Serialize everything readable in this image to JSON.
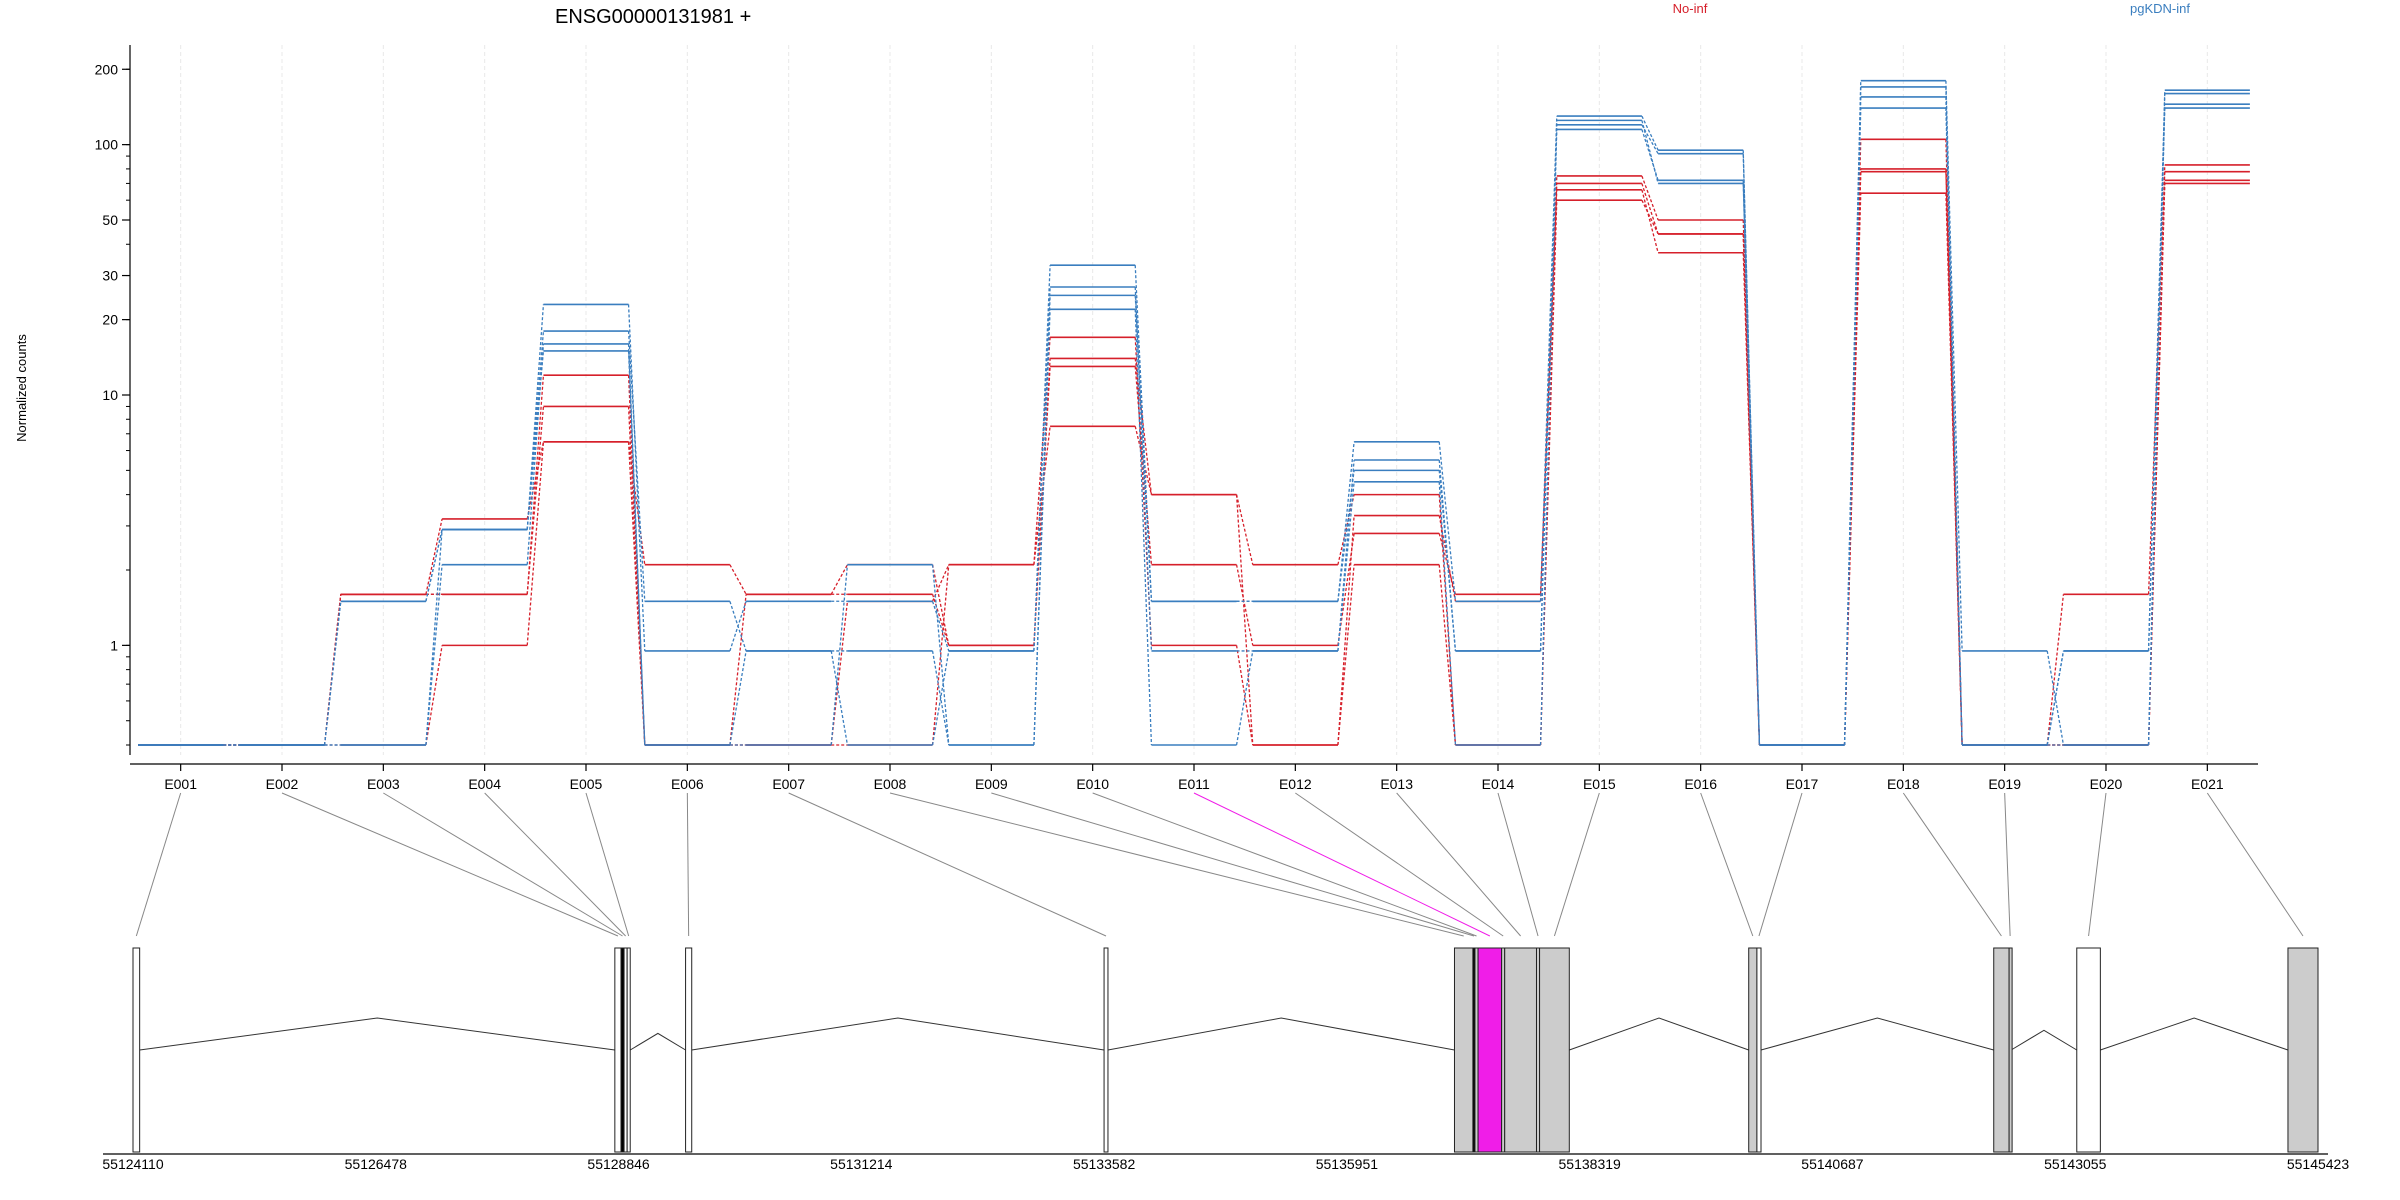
{
  "chart_data": {
    "type": "line",
    "title": "ENSG00000131981 +",
    "ylabel": "Normalized counts",
    "y_scale": "log",
    "yticks": [
      1,
      10,
      20,
      30,
      50,
      100,
      200
    ],
    "ylim": [
      0.4,
      250
    ],
    "grid": "x-major",
    "legend_position": "top-right",
    "colors": {
      "No-inf": "#d6202b",
      "pgKDN-inf": "#3a7ebf",
      "highlight": "#f01de8",
      "exon_fill": "#cccccc"
    },
    "categories": [
      "E001",
      "E002",
      "E003",
      "E004",
      "E005",
      "E006",
      "E007",
      "E008",
      "E009",
      "E010",
      "E011",
      "E012",
      "E013",
      "E014",
      "E015",
      "E016",
      "E017",
      "E018",
      "E019",
      "E020",
      "E021"
    ],
    "series": [
      {
        "name": "No-inf",
        "values": [
          0.4,
          0.4,
          1.6,
          3.2,
          6.5,
          2.1,
          1.6,
          1.6,
          1.0,
          14,
          4.0,
          2.1,
          4.0,
          0.4,
          75,
          50,
          0.4,
          105,
          0.4,
          0.4,
          83
        ]
      },
      {
        "name": "No-inf",
        "values": [
          0.4,
          0.4,
          1.6,
          1.6,
          9,
          0.4,
          1.6,
          2.1,
          1.0,
          13,
          2.1,
          1.0,
          2.8,
          1.6,
          70,
          44,
          0.4,
          80,
          0.4,
          1.6,
          78
        ]
      },
      {
        "name": "No-inf",
        "values": [
          0.4,
          0.4,
          1.6,
          1.6,
          12,
          0.4,
          0.4,
          1.5,
          2.1,
          17,
          1.0,
          0.4,
          3.3,
          1.5,
          66,
          37,
          0.4,
          78,
          0.4,
          0.4,
          72
        ]
      },
      {
        "name": "No-inf",
        "values": [
          0.4,
          0.4,
          0.4,
          1.0,
          6.5,
          0.4,
          0.4,
          0.4,
          2.1,
          7.5,
          4.0,
          0.4,
          2.1,
          0.4,
          60,
          44,
          0.4,
          64,
          0.4,
          0.4,
          70
        ]
      },
      {
        "name": "pgKDN-inf",
        "values": [
          0.4,
          0.4,
          1.5,
          2.9,
          23,
          0.95,
          1.5,
          1.5,
          0.95,
          33,
          1.5,
          1.5,
          6.5,
          1.5,
          130,
          95,
          0.4,
          180,
          0.95,
          0.4,
          165
        ]
      },
      {
        "name": "pgKDN-inf",
        "values": [
          0.4,
          0.4,
          1.5,
          2.9,
          18,
          1.5,
          0.95,
          0.4,
          0.95,
          27,
          0.95,
          0.95,
          5.5,
          0.95,
          120,
          92,
          0.4,
          170,
          0.4,
          0.95,
          160
        ]
      },
      {
        "name": "pgKDN-inf",
        "values": [
          0.4,
          0.4,
          0.4,
          2.1,
          16,
          0.4,
          0.95,
          0.95,
          0.4,
          22,
          0.4,
          0.95,
          4.5,
          0.4,
          115,
          72,
          0.4,
          155,
          0.4,
          0.4,
          145
        ]
      },
      {
        "name": "pgKDN-inf",
        "values": [
          0.4,
          0.4,
          0.4,
          2.9,
          15,
          0.4,
          0.4,
          2.1,
          0.4,
          25,
          1.5,
          1.5,
          5.0,
          0.95,
          125,
          70,
          0.4,
          140,
          0.4,
          0.95,
          140
        ]
      }
    ],
    "gene_model": {
      "exons": [
        {
          "id": "E001",
          "start": 55124110,
          "end": 55124175,
          "fill": "#ffffff"
        },
        {
          "id": "E002",
          "start": 55128810,
          "end": 55128870,
          "fill": "#ffffff"
        },
        {
          "id": "E003",
          "start": 55128870,
          "end": 55128900,
          "fill": "#000000"
        },
        {
          "id": "E004",
          "start": 55128900,
          "end": 55128930,
          "fill": "#ffffff"
        },
        {
          "id": "E005",
          "start": 55128930,
          "end": 55128960,
          "fill": "#ffffff"
        },
        {
          "id": "E006",
          "start": 55129500,
          "end": 55129560,
          "fill": "#ffffff"
        },
        {
          "id": "E007",
          "start": 55133582,
          "end": 55133620,
          "fill": "#ffffff"
        },
        {
          "id": "E008",
          "start": 55137000,
          "end": 55137180,
          "fill": "#cccccc"
        },
        {
          "id": "E009",
          "start": 55137180,
          "end": 55137200,
          "fill": "#000000"
        },
        {
          "id": "E010",
          "start": 55137200,
          "end": 55137230,
          "fill": "#cccccc"
        },
        {
          "id": "E011",
          "start": 55137230,
          "end": 55137460,
          "fill": "#f01de8"
        },
        {
          "id": "E012",
          "start": 55137460,
          "end": 55137490,
          "fill": "#cccccc"
        },
        {
          "id": "E013",
          "start": 55137490,
          "end": 55137800,
          "fill": "#cccccc"
        },
        {
          "id": "E014",
          "start": 55137800,
          "end": 55137830,
          "fill": "#cccccc"
        },
        {
          "id": "E015",
          "start": 55137830,
          "end": 55138120,
          "fill": "#cccccc"
        },
        {
          "id": "E016",
          "start": 55139870,
          "end": 55139950,
          "fill": "#cccccc"
        },
        {
          "id": "E017",
          "start": 55139950,
          "end": 55139990,
          "fill": "#ffffff"
        },
        {
          "id": "E018",
          "start": 55142260,
          "end": 55142410,
          "fill": "#cccccc"
        },
        {
          "id": "E019",
          "start": 55142410,
          "end": 55142430,
          "fill": "#cccccc"
        },
        {
          "id": "E020",
          "start": 55143070,
          "end": 55143300,
          "fill": "#ffffff"
        },
        {
          "id": "E021",
          "start": 55145130,
          "end": 55145423,
          "fill": "#cccccc"
        }
      ],
      "coord_ticks": [
        "55124110",
        "55126478",
        "55128846",
        "55131214",
        "55133582",
        "55135951",
        "55138319",
        "55140687",
        "55143055",
        "55145423"
      ]
    }
  }
}
